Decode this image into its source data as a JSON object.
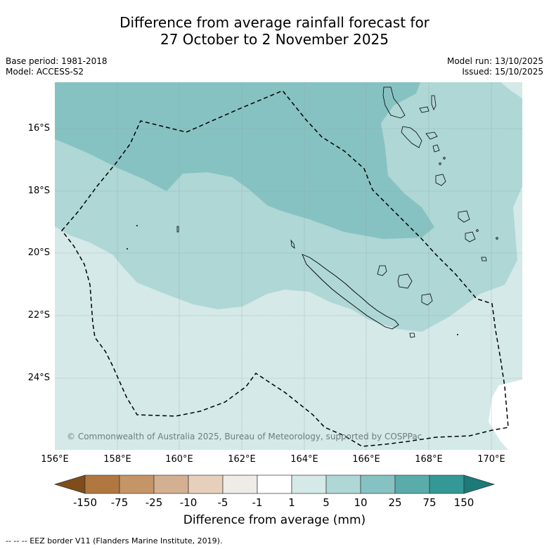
{
  "title": {
    "line1": "Difference from average rainfall forecast for",
    "line2": "27 October to 2 November 2025"
  },
  "meta_left": {
    "base_period": "Base period: 1981-2018",
    "model": "Model: ACCESS-S2"
  },
  "meta_right": {
    "model_run": "Model run: 13/10/2025",
    "issued": "Issued: 15/10/2025"
  },
  "map": {
    "lat_labels": [
      "16°S",
      "18°S",
      "20°S",
      "22°S",
      "24°S"
    ],
    "lon_labels": [
      "156°E",
      "158°E",
      "160°E",
      "162°E",
      "164°E",
      "166°E",
      "168°E",
      "170°E"
    ],
    "copyright": "© Commonwealth of Australia 2025, Bureau of Meteorology, supported by COSPPac",
    "zone_colors": {
      "c1_5": "#d4e9e8",
      "c5_10": "#aed7d6",
      "c10_25": "#86c2c1",
      "no_data": "#ffffff"
    }
  },
  "colorbar": {
    "tick_labels": [
      "-150",
      "-75",
      "-25",
      "-10",
      "-5",
      "-1",
      "1",
      "5",
      "10",
      "25",
      "75",
      "150"
    ],
    "colors": [
      "#7f4c1a",
      "#b07840",
      "#c59467",
      "#d4b092",
      "#e6d0bb",
      "#efebe7",
      "#ffffff",
      "#d5e9e8",
      "#aed7d6",
      "#86c2c1",
      "#5aacab",
      "#339896",
      "#1c7a78"
    ],
    "label": "Difference from average (mm)"
  },
  "footnote": "--  --  -- EEZ border V11 (Flanders Marine Institute, 2019)."
}
